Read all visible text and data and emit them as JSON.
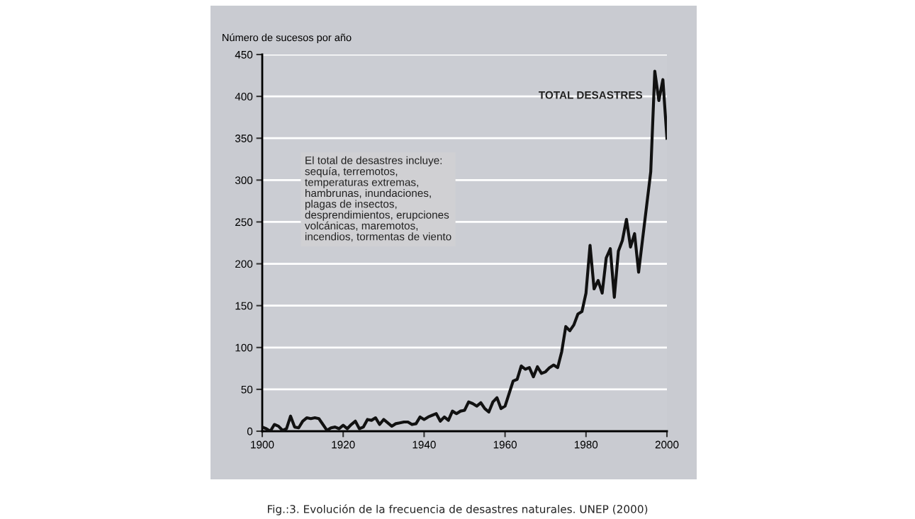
{
  "chart_data": {
    "type": "line",
    "ylabel": "Número de sucesos por año",
    "x": [
      1900,
      1901,
      1902,
      1903,
      1904,
      1905,
      1906,
      1907,
      1908,
      1909,
      1910,
      1911,
      1912,
      1913,
      1914,
      1915,
      1916,
      1917,
      1918,
      1919,
      1920,
      1921,
      1922,
      1923,
      1924,
      1925,
      1926,
      1927,
      1928,
      1929,
      1930,
      1931,
      1932,
      1933,
      1934,
      1935,
      1936,
      1937,
      1938,
      1939,
      1940,
      1941,
      1942,
      1943,
      1944,
      1945,
      1946,
      1947,
      1948,
      1949,
      1950,
      1951,
      1952,
      1953,
      1954,
      1955,
      1956,
      1957,
      1958,
      1959,
      1960,
      1961,
      1962,
      1963,
      1964,
      1965,
      1966,
      1967,
      1968,
      1969,
      1970,
      1971,
      1972,
      1973,
      1974,
      1975,
      1976,
      1977,
      1978,
      1979,
      1980,
      1981,
      1982,
      1983,
      1984,
      1985,
      1986,
      1987,
      1988,
      1989,
      1990,
      1991,
      1992,
      1993,
      1994,
      1995,
      1996,
      1997,
      1998,
      1999,
      2000
    ],
    "series": [
      {
        "color": "#111111",
        "values": [
          5,
          3,
          0,
          8,
          6,
          1,
          3,
          18,
          5,
          4,
          12,
          16,
          15,
          16,
          15,
          8,
          1,
          4,
          5,
          3,
          7,
          3,
          8,
          12,
          3,
          5,
          14,
          13,
          16,
          8,
          14,
          10,
          6,
          9,
          10,
          11,
          11,
          8,
          9,
          17,
          14,
          17,
          19,
          21,
          12,
          17,
          13,
          24,
          21,
          24,
          25,
          35,
          33,
          30,
          34,
          27,
          23,
          35,
          40,
          27,
          30,
          45,
          60,
          62,
          78,
          74,
          76,
          65,
          77,
          69,
          71,
          76,
          79,
          76,
          95,
          125,
          120,
          127,
          140,
          143,
          165,
          222,
          170,
          180,
          165,
          207,
          218,
          160,
          215,
          228,
          253,
          220,
          236,
          190,
          230,
          270,
          310,
          430,
          395,
          420,
          350
        ]
      }
    ],
    "xlim": [
      1900,
      2000
    ],
    "xticks": [
      1900,
      1920,
      1940,
      1960,
      1980,
      2000
    ],
    "ylim": [
      0,
      450
    ],
    "yticks": [
      0,
      50,
      100,
      150,
      200,
      250,
      300,
      350,
      400,
      450
    ],
    "grid": "y",
    "marker": "none",
    "line_style": "solid",
    "annotations": [
      "TOTAL DESASTRES",
      "El total de desastres incluye:\nsequía, terremotos,\ntemperaturas extremas,\nhambrunas, inundaciones,\nplagas de insectos,\ndesprendimientos, erupciones\nvolcánicas, maremotos,\nincendios, tormentas de viento",
      "Fig.:3. Evolución de la frecuencia de desastres naturales. UNEP (2000)"
    ]
  }
}
